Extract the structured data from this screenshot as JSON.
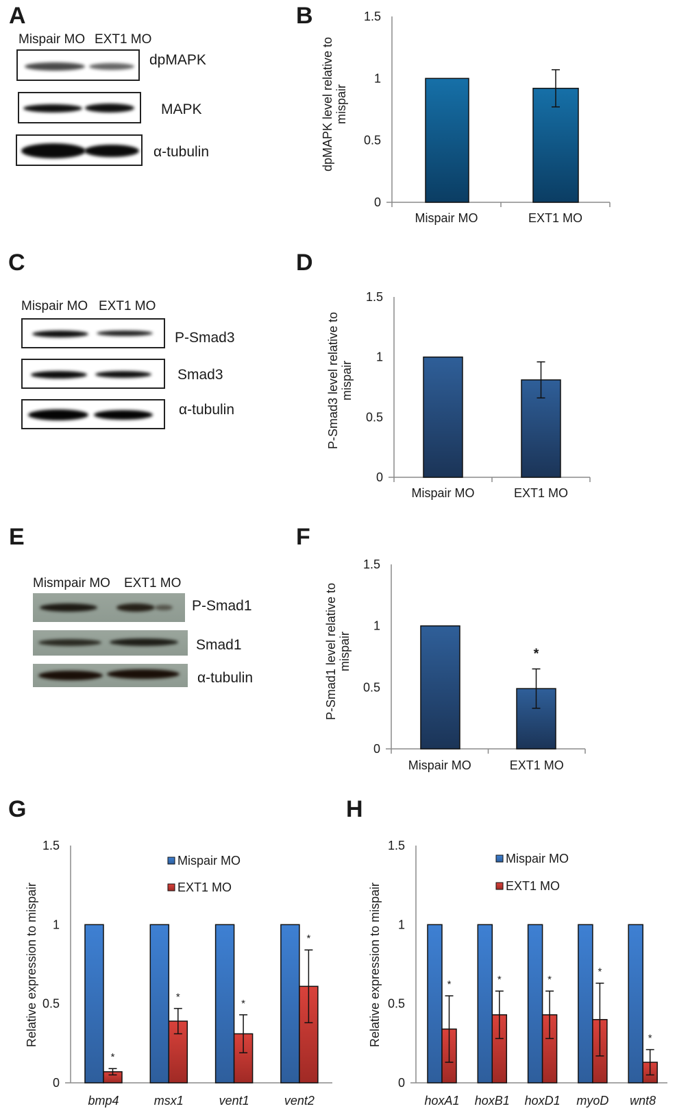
{
  "panels": {
    "A": {
      "letter": "A",
      "lanes": [
        "Mispair MO",
        "EXT1 MO"
      ],
      "blots": [
        "dpMAPK",
        "MAPK",
        "α-tubulin"
      ]
    },
    "B": {
      "letter": "B"
    },
    "C": {
      "letter": "C",
      "lanes": [
        "Mispair MO",
        "EXT1 MO"
      ],
      "blots": [
        "P-Smad3",
        "Smad3",
        "α-tubulin"
      ]
    },
    "D": {
      "letter": "D"
    },
    "E": {
      "letter": "E",
      "lanes": [
        "Mismpair MO",
        "EXT1 MO"
      ],
      "blots": [
        "P-Smad1",
        "Smad1",
        "α-tubulin"
      ]
    },
    "F": {
      "letter": "F"
    },
    "G": {
      "letter": "G"
    },
    "H": {
      "letter": "H"
    }
  },
  "colors": {
    "B_bar": "#11598f",
    "DF_bar": "#264d7f",
    "mispair_blue": "#3b7bcc",
    "ext1_red": "#cf3a34",
    "axis": "#8a8a8a"
  },
  "chart_data": [
    {
      "panel": "B",
      "type": "bar",
      "categories": [
        "Mispair MO",
        "EXT1 MO"
      ],
      "values": [
        1,
        0.92
      ],
      "errors": [
        null,
        0.15
      ],
      "ylabel_lines": [
        "dpMAPK  level relative to",
        "mispair"
      ],
      "ylim": [
        0,
        1.5
      ],
      "yticks": [
        "0",
        "0.5",
        "1",
        "1.5"
      ],
      "annotations": [
        null,
        null
      ],
      "grid": false
    },
    {
      "panel": "D",
      "type": "bar",
      "categories": [
        "Mispair MO",
        "EXT1 MO"
      ],
      "values": [
        1,
        0.81
      ],
      "errors": [
        null,
        0.15
      ],
      "ylabel_lines": [
        "P-Smad3 level relative to",
        "mispair"
      ],
      "ylim": [
        0,
        1.5
      ],
      "yticks": [
        "0",
        "0.5",
        "1",
        "1.5"
      ],
      "annotations": [
        null,
        null
      ],
      "grid": false
    },
    {
      "panel": "F",
      "type": "bar",
      "categories": [
        "Mispair MO",
        "EXT1 MO"
      ],
      "values": [
        1,
        0.49
      ],
      "errors": [
        null,
        0.16
      ],
      "ylabel_lines": [
        "P-Smad1 level relative to",
        "mispair"
      ],
      "ylim": [
        0,
        1.5
      ],
      "yticks": [
        "0",
        "0.5",
        "1",
        "1.5"
      ],
      "annotations": [
        null,
        "*"
      ],
      "grid": false
    },
    {
      "panel": "G",
      "type": "bar",
      "categories": [
        "bmp4",
        "msx1",
        "vent1",
        "vent2"
      ],
      "series": [
        {
          "name": "Mispair MO",
          "values": [
            1,
            1,
            1,
            1
          ],
          "errors": [
            null,
            null,
            null,
            null
          ]
        },
        {
          "name": "EXT1 MO",
          "values": [
            0.07,
            0.39,
            0.31,
            0.61
          ],
          "errors": [
            0.02,
            0.08,
            0.12,
            0.23
          ]
        }
      ],
      "annotations": [
        "*",
        "*",
        "*",
        "*"
      ],
      "ylabel_lines": [
        "Relative expression to mispair"
      ],
      "ylim": [
        0,
        1.5
      ],
      "yticks": [
        "0",
        "0.5",
        "1",
        "1.5"
      ],
      "legend": "top-right",
      "grid": false
    },
    {
      "panel": "H",
      "type": "bar",
      "categories": [
        "hoxA1",
        "hoxB1",
        "hoxD1",
        "myoD",
        "wnt8"
      ],
      "series": [
        {
          "name": "Mispair MO",
          "values": [
            1,
            1,
            1,
            1,
            1
          ],
          "errors": [
            null,
            null,
            null,
            null,
            null
          ]
        },
        {
          "name": "EXT1 MO",
          "values": [
            0.34,
            0.43,
            0.43,
            0.4,
            0.13
          ],
          "errors": [
            0.21,
            0.15,
            0.15,
            0.23,
            0.08
          ]
        }
      ],
      "annotations": [
        "*",
        "*",
        "*",
        "*",
        "*"
      ],
      "ylabel_lines": [
        "Relative expression to mispair"
      ],
      "ylim": [
        0,
        1.5
      ],
      "yticks": [
        "0",
        "0.5",
        "1",
        "1.5"
      ],
      "legend": "top-right",
      "grid": false
    }
  ]
}
